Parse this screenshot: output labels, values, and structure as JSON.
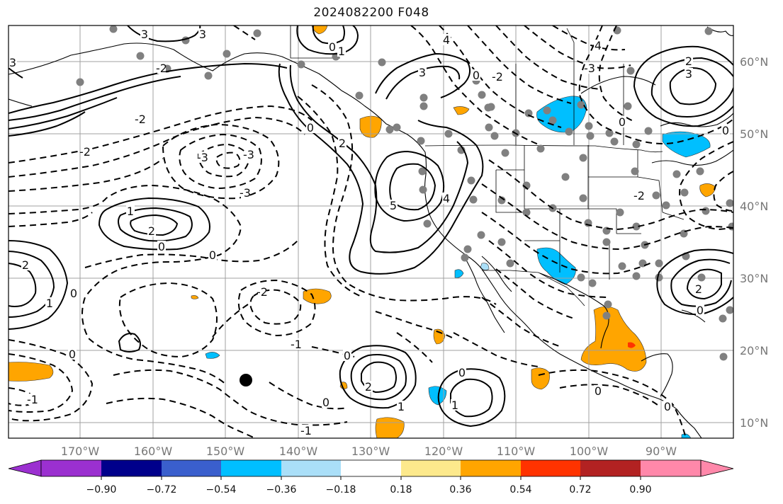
{
  "map": {
    "title": "2024082200 F048",
    "lon_labels": [
      "170°W",
      "160°W",
      "150°W",
      "140°W",
      "130°W",
      "120°W",
      "110°W",
      "100°W",
      "90°W"
    ],
    "lat_labels": [
      "60°N",
      "50°N",
      "40°N",
      "30°N",
      "20°N",
      "10°N"
    ],
    "contour_labels": [
      "-3",
      "-2",
      "-1",
      "0",
      "1",
      "2",
      "3",
      "4",
      "5"
    ],
    "colors": {
      "positive_light": "#fde98c",
      "positive_orange": "#ffa500",
      "positive_red": "#ff3300",
      "negative_cyan": "#00bfff",
      "negative_light": "#aadff8",
      "station_dot": "#808080",
      "gridline": "#a0a0a0"
    }
  },
  "colorbar": {
    "ticks": [
      "−0.90",
      "−0.72",
      "−0.54",
      "−0.36",
      "−0.18",
      "0.18",
      "0.36",
      "0.54",
      "0.72",
      "0.90"
    ],
    "colors": [
      "#9b30d0",
      "#00008b",
      "#3a5fcd",
      "#00bfff",
      "#aadff8",
      "#ffffff",
      "#fde98c",
      "#ffa500",
      "#ff3300",
      "#b22222",
      "#ff88aa"
    ]
  }
}
